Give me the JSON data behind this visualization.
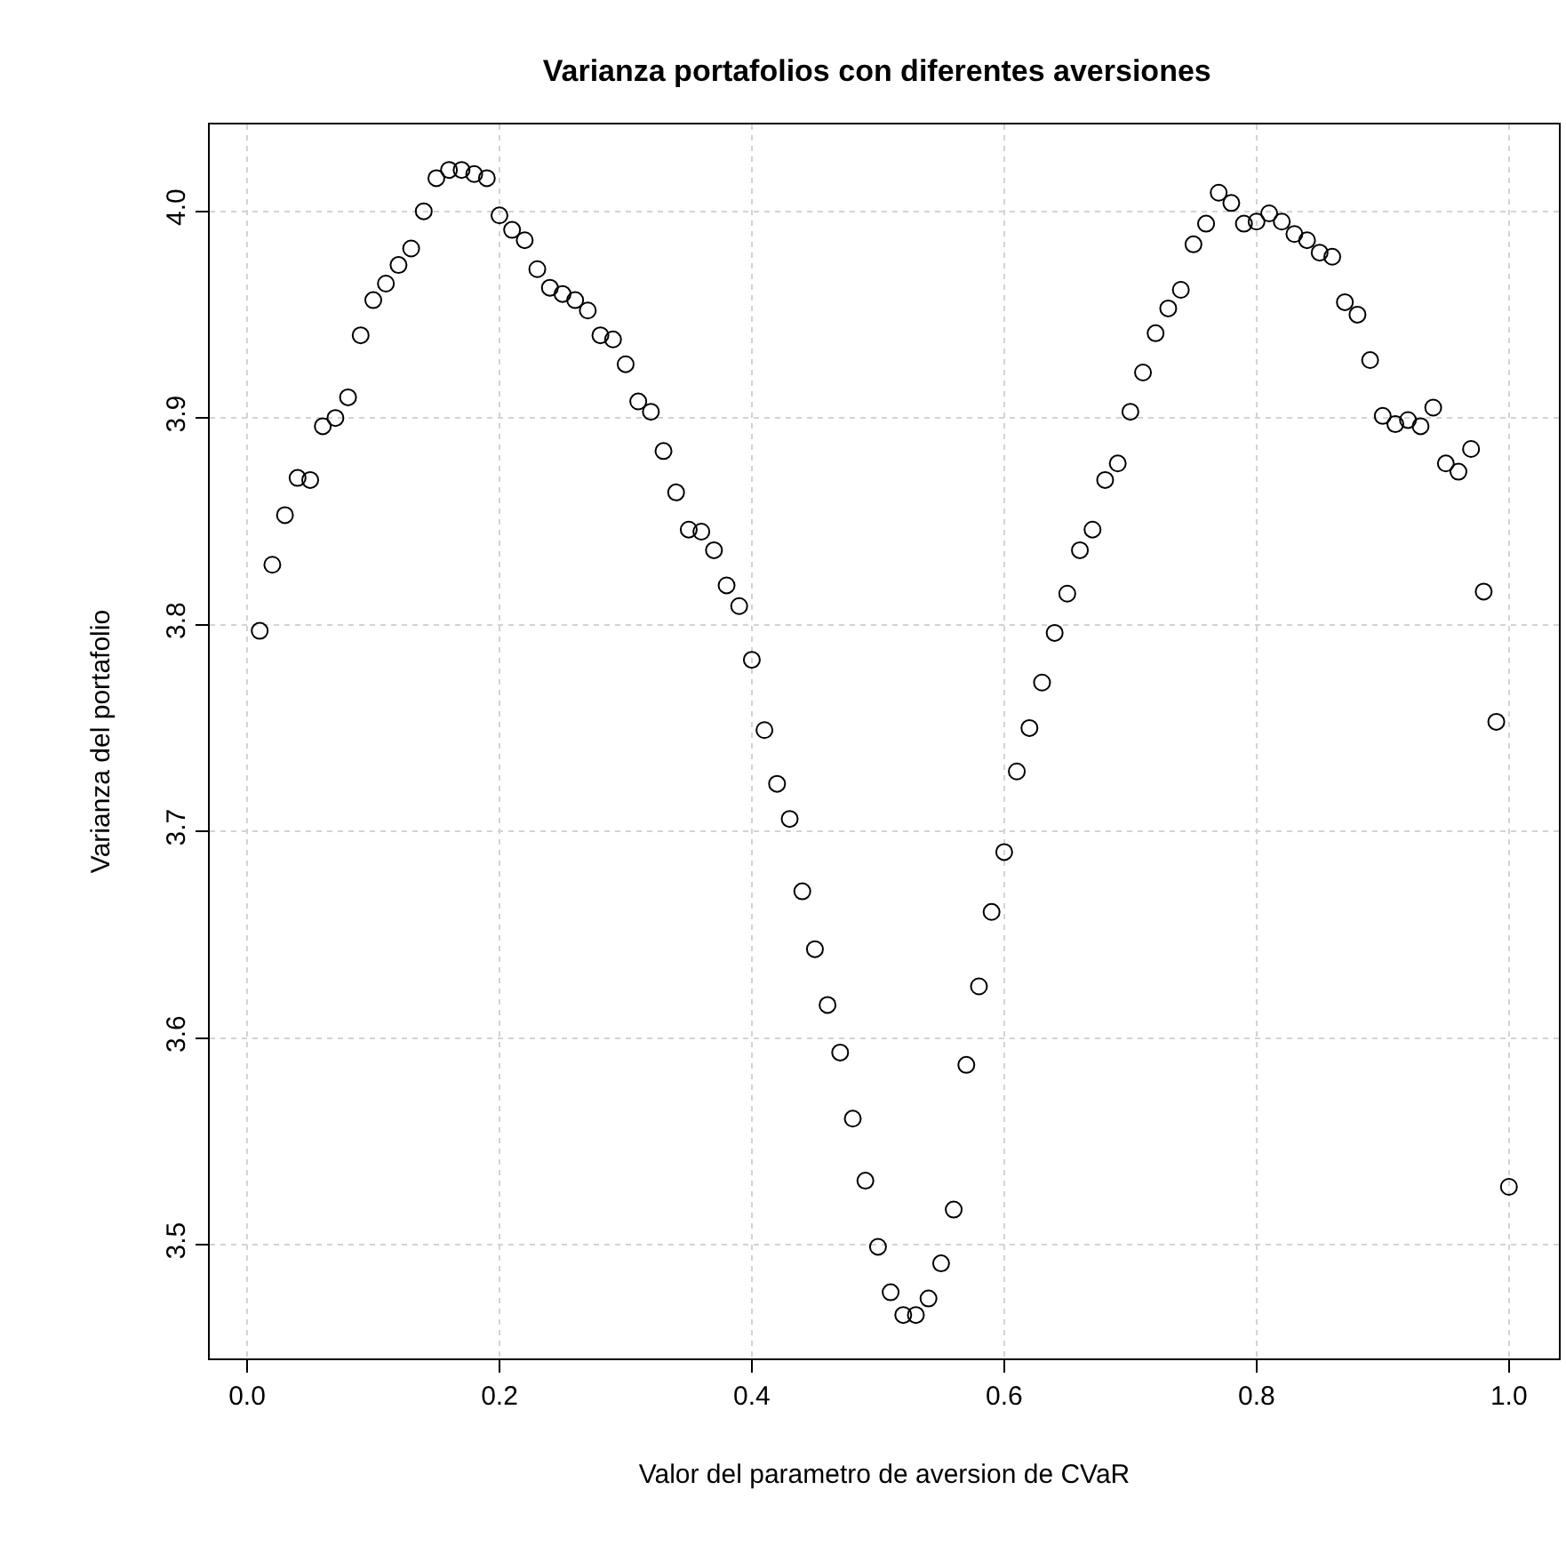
{
  "chart_data": {
    "type": "scatter",
    "title": "Varianza portafolios con diferentes aversiones",
    "xlabel": "Valor del parametro de aversion de CVaR",
    "ylabel": "Varianza del portafolio",
    "x": [
      0.01,
      0.02,
      0.03,
      0.04,
      0.05,
      0.06,
      0.07,
      0.08,
      0.09,
      0.1,
      0.11,
      0.12,
      0.13,
      0.14,
      0.15,
      0.16,
      0.17,
      0.18,
      0.19,
      0.2,
      0.21,
      0.22,
      0.23,
      0.24,
      0.25,
      0.26,
      0.27,
      0.28,
      0.29,
      0.3,
      0.31,
      0.32,
      0.33,
      0.34,
      0.35,
      0.36,
      0.37,
      0.38,
      0.39,
      0.4,
      0.41,
      0.42,
      0.43,
      0.44,
      0.45,
      0.46,
      0.47,
      0.48,
      0.49,
      0.5,
      0.51,
      0.52,
      0.53,
      0.54,
      0.55,
      0.56,
      0.57,
      0.58,
      0.59,
      0.6,
      0.61,
      0.62,
      0.63,
      0.64,
      0.65,
      0.66,
      0.67,
      0.68,
      0.69,
      0.7,
      0.71,
      0.72,
      0.73,
      0.74,
      0.75,
      0.76,
      0.77,
      0.78,
      0.79,
      0.8,
      0.81,
      0.82,
      0.83,
      0.84,
      0.85,
      0.86,
      0.87,
      0.88,
      0.89,
      0.9,
      0.91,
      0.92,
      0.93,
      0.94,
      0.95,
      0.96,
      0.97,
      0.98,
      0.99,
      1.0
    ],
    "values": [
      3.797,
      3.829,
      3.853,
      3.871,
      3.87,
      3.896,
      3.9,
      3.91,
      3.94,
      3.957,
      3.965,
      3.974,
      3.982,
      4.0,
      4.016,
      4.02,
      4.02,
      4.018,
      4.016,
      3.998,
      3.991,
      3.986,
      3.972,
      3.963,
      3.96,
      3.957,
      3.952,
      3.94,
      3.938,
      3.926,
      3.908,
      3.903,
      3.884,
      3.864,
      3.846,
      3.845,
      3.836,
      3.819,
      3.809,
      3.783,
      3.749,
      3.723,
      3.706,
      3.671,
      3.643,
      3.616,
      3.593,
      3.561,
      3.531,
      3.499,
      3.477,
      3.466,
      3.466,
      3.474,
      3.491,
      3.517,
      3.587,
      3.625,
      3.661,
      3.69,
      3.729,
      3.75,
      3.772,
      3.796,
      3.815,
      3.836,
      3.846,
      3.87,
      3.878,
      3.903,
      3.922,
      3.941,
      3.953,
      3.962,
      3.984,
      3.994,
      4.009,
      4.004,
      3.994,
      3.995,
      3.999,
      3.995,
      3.989,
      3.986,
      3.98,
      3.978,
      3.956,
      3.95,
      3.928,
      3.901,
      3.897,
      3.899,
      3.896,
      3.905,
      3.878,
      3.874,
      3.885,
      3.816,
      3.753,
      3.528
    ],
    "color": "#000000",
    "marker": "circle",
    "grid": true,
    "xlim": [
      -0.0296,
      1.0396
    ],
    "xticks": [
      {
        "value": 0,
        "label": "0.0"
      },
      0.2,
      0.4,
      0.6,
      0.8,
      {
        "value": 1,
        "label": "1.0"
      }
    ],
    "ylim": [
      3.445,
      4.042
    ],
    "yticks": [
      3.5,
      3.6,
      3.7,
      3.8,
      3.9,
      {
        "value": 4,
        "label": "4.0"
      }
    ]
  }
}
